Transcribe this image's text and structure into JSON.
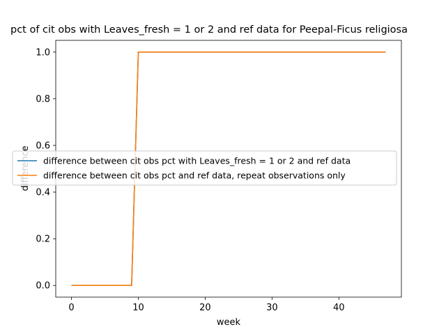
{
  "chart_data": {
    "type": "line",
    "title": "pct of cit obs with Leaves_fresh = 1 or 2 and ref data for Peepal-Ficus religiosa",
    "xlabel": "week",
    "ylabel": "difference",
    "xlim": [
      -2.35,
      49.35
    ],
    "ylim": [
      -0.05,
      1.05
    ],
    "xticks": [
      0,
      10,
      20,
      30,
      40
    ],
    "yticks": [
      0.0,
      0.2,
      0.4,
      0.6,
      0.8,
      1.0
    ],
    "ytick_labels": [
      "0.0",
      "0.2",
      "0.4",
      "0.6",
      "0.8",
      "1.0"
    ],
    "legend_position": "center-right",
    "series": [
      {
        "name": "difference between cit obs pct with Leaves_fresh = 1 or 2 and ref data",
        "color": "#1f77b4",
        "x": [
          0,
          9,
          10,
          47
        ],
        "y": [
          0.0,
          0.0,
          1.0,
          1.0
        ]
      },
      {
        "name": "difference between cit obs pct and ref data, repeat observations only",
        "color": "#ff7f0e",
        "x": [
          0,
          9,
          10,
          47
        ],
        "y": [
          0.0,
          0.0,
          1.0,
          1.0
        ]
      }
    ]
  }
}
